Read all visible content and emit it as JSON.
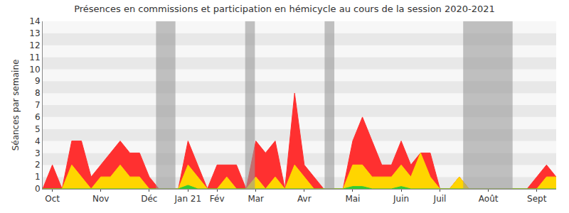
{
  "chart_data": {
    "type": "area",
    "title": "Présences en commissions et participation en hémicycle au cours de la session 2020-2021",
    "y_label": "Séances par semaine",
    "categories": [
      null,
      "Oct",
      null,
      null,
      null,
      null,
      "Nov",
      null,
      null,
      null,
      null,
      "Déc",
      null,
      null,
      null,
      "Jan 21",
      null,
      null,
      "Fév",
      null,
      null,
      null,
      "Mar",
      null,
      null,
      null,
      null,
      "Avr",
      null,
      null,
      null,
      null,
      "Mai",
      null,
      null,
      null,
      null,
      "Juin",
      null,
      null,
      null,
      "Juil",
      null,
      null,
      null,
      null,
      "Août",
      null,
      null,
      null,
      null,
      "Sept",
      null,
      null
    ],
    "series": [
      {
        "color": "#ff3030",
        "values": [
          0,
          2,
          0,
          4,
          4,
          1,
          2,
          3,
          4,
          3,
          3,
          1,
          0,
          0,
          0,
          4,
          2,
          0,
          2,
          2,
          2,
          0,
          4,
          3,
          4,
          0,
          8,
          2,
          1,
          0,
          0,
          0,
          4,
          6,
          4,
          2,
          2,
          4,
          2,
          3,
          3,
          0,
          0,
          1,
          0,
          0,
          0,
          0,
          0,
          0,
          0,
          1,
          2,
          1
        ]
      },
      {
        "color": "#ffd500",
        "values": [
          0,
          0,
          0,
          2,
          1,
          0,
          1,
          1,
          2,
          1,
          1,
          0,
          0,
          0,
          0,
          2,
          1,
          0,
          0,
          1,
          0,
          0,
          1,
          0,
          1,
          0,
          2,
          1,
          0,
          0,
          0,
          0,
          2,
          2,
          1,
          1,
          1,
          2,
          1,
          3,
          1,
          0,
          0,
          1,
          0,
          0,
          0,
          0,
          0,
          0,
          0,
          0,
          1,
          1
        ]
      },
      {
        "color": "#33cc33",
        "values": [
          0,
          0,
          0,
          0,
          0,
          0,
          0,
          0,
          0,
          0,
          0,
          0,
          0,
          0,
          0,
          0.3,
          0,
          0,
          0,
          0,
          0,
          0,
          0,
          0,
          0,
          0,
          0,
          0,
          0,
          0,
          0,
          0,
          0.2,
          0.2,
          0,
          0,
          0,
          0.2,
          0,
          0,
          0,
          0,
          0,
          0,
          0,
          0,
          0,
          0,
          0,
          0,
          0,
          0,
          0,
          0
        ]
      }
    ],
    "shaded_periods": [
      [
        11.7,
        13.7
      ],
      [
        20.9,
        21.9
      ],
      [
        29.1,
        30.1
      ],
      [
        43.4,
        48.5
      ]
    ],
    "stacked": false,
    "xlim": [
      0,
      53
    ],
    "ylim": [
      0,
      14
    ],
    "yticks": [
      0,
      1,
      2,
      3,
      4,
      5,
      6,
      7,
      8,
      9,
      10,
      11,
      12,
      13,
      14
    ],
    "grid": true
  }
}
